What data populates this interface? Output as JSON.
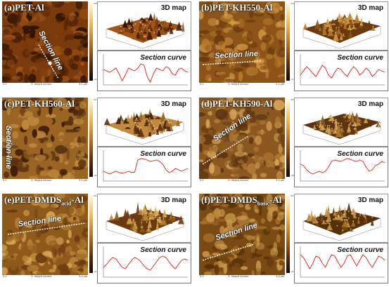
{
  "figure": {
    "panels": [
      {
        "id": "a",
        "label_prefix": "(a)PET-",
        "label_sub": "",
        "label_suffix": "Al",
        "section_line_text": "Section line",
        "map3d_text": "3D map",
        "section_curve_text": "Section curve",
        "footer_center": "5: Height Sensor",
        "footer_left": "0.0",
        "footer_right": "5.0 μm",
        "colorbar_top": "225.0 nm",
        "colorbar_bottom": "-225.0 nm",
        "curve_profile": [
          0.55,
          0.5,
          0.45,
          0.52,
          0.6,
          0.4,
          0.15,
          0.35,
          0.6,
          0.55,
          0.5,
          0.6,
          0.75,
          0.7,
          0.3,
          0.1,
          0.4,
          0.6,
          0.55,
          0.5,
          0.65,
          0.6,
          0.4,
          0.35,
          0.55,
          0.6,
          0.5,
          0.45
        ]
      },
      {
        "id": "b",
        "label_prefix": "(b)PET-KH550-",
        "label_sub": "",
        "label_suffix": "Al",
        "section_line_text": "Section line",
        "map3d_text": "3D map",
        "section_curve_text": "Section curve",
        "footer_center": "5: Height Sensor",
        "footer_left": "0.0",
        "footer_right": "5.0 μm",
        "colorbar_top": "172.0 nm",
        "colorbar_bottom": "-172.0 nm",
        "curve_profile": [
          0.35,
          0.5,
          0.65,
          0.55,
          0.4,
          0.3,
          0.5,
          0.7,
          0.6,
          0.35,
          0.25,
          0.45,
          0.6,
          0.55,
          0.4,
          0.3,
          0.5,
          0.65,
          0.55,
          0.35,
          0.45,
          0.6,
          0.5,
          0.3,
          0.4,
          0.55,
          0.5,
          0.45
        ]
      },
      {
        "id": "c",
        "label_prefix": "(c)PET-KH560-",
        "label_sub": "",
        "label_suffix": "Al",
        "section_line_text": "Section line",
        "map3d_text": "3D map",
        "section_curve_text": "Section curve",
        "footer_center": "5: Height Sensor",
        "footer_left": "0.0",
        "footer_right": "5.0 μm",
        "colorbar_top": "217.0 nm",
        "colorbar_bottom": "-217.0 nm",
        "curve_profile": [
          0.35,
          0.3,
          0.25,
          0.3,
          0.35,
          0.3,
          0.28,
          0.3,
          0.35,
          0.3,
          0.32,
          0.75,
          0.8,
          0.78,
          0.75,
          0.7,
          0.72,
          0.75,
          0.7,
          0.6,
          0.4,
          0.3,
          0.35,
          0.45,
          0.4,
          0.35,
          0.4,
          0.45
        ]
      },
      {
        "id": "d",
        "label_prefix": "(d)PET-KH590-",
        "label_sub": "",
        "label_suffix": "Al",
        "section_line_text": "Section line",
        "map3d_text": "3D map",
        "section_curve_text": "Section curve",
        "footer_center": "5: Height Sensor",
        "footer_left": "0.0",
        "footer_right": "5.0 μm",
        "colorbar_top": "163.0 nm",
        "colorbar_bottom": "-163.0 nm",
        "curve_profile": [
          0.6,
          0.55,
          0.4,
          0.3,
          0.25,
          0.3,
          0.35,
          0.3,
          0.35,
          0.5,
          0.7,
          0.75,
          0.72,
          0.7,
          0.75,
          0.8,
          0.78,
          0.72,
          0.7,
          0.75,
          0.7,
          0.5,
          0.35,
          0.4,
          0.55,
          0.6,
          0.7,
          0.65
        ]
      },
      {
        "id": "e",
        "label_prefix": "(e)PET-DMDS",
        "label_sub": "acid",
        "label_suffix": "-Al",
        "section_line_text": "Section line",
        "map3d_text": "3D map",
        "section_curve_text": "Section curve",
        "footer_center": "5: Height Sensor",
        "footer_left": "0.0",
        "footer_right": "5.0 μm",
        "colorbar_top": "217.0 nm",
        "colorbar_bottom": "-217.0 nm",
        "curve_profile": [
          0.35,
          0.45,
          0.6,
          0.7,
          0.65,
          0.5,
          0.35,
          0.3,
          0.45,
          0.6,
          0.7,
          0.65,
          0.55,
          0.4,
          0.3,
          0.25,
          0.4,
          0.55,
          0.7,
          0.75,
          0.7,
          0.55,
          0.4,
          0.3,
          0.45,
          0.6,
          0.65,
          0.6
        ]
      },
      {
        "id": "f",
        "label_prefix": "(f)PET-DMDS",
        "label_sub": "basic",
        "label_suffix": "-Al",
        "section_line_text": "Section line",
        "map3d_text": "3D map",
        "section_curve_text": "Section curve",
        "footer_center": "5: Height Sensor",
        "footer_left": "0.0",
        "footer_right": "5.0 μm",
        "colorbar_top": "217.0 nm",
        "colorbar_bottom": "-217.0 nm",
        "curve_profile": [
          0.8,
          0.7,
          0.5,
          0.3,
          0.5,
          0.75,
          0.7,
          0.5,
          0.35,
          0.6,
          0.8,
          0.75,
          0.55,
          0.35,
          0.5,
          0.75,
          0.8,
          0.6,
          0.4,
          0.6,
          0.8,
          0.7,
          0.5,
          0.35,
          0.55,
          0.75,
          0.7,
          0.6
        ]
      }
    ]
  }
}
